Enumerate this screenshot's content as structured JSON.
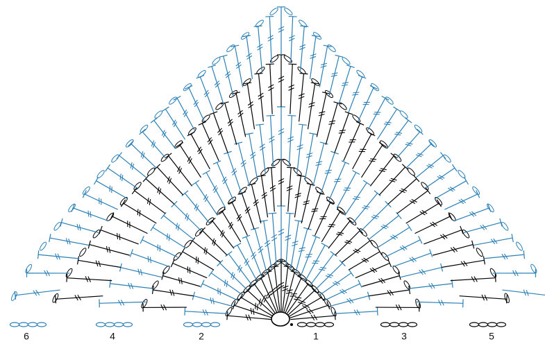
{
  "row_labels": [
    "6",
    "4",
    "2",
    "1",
    "3",
    "5"
  ]
}
